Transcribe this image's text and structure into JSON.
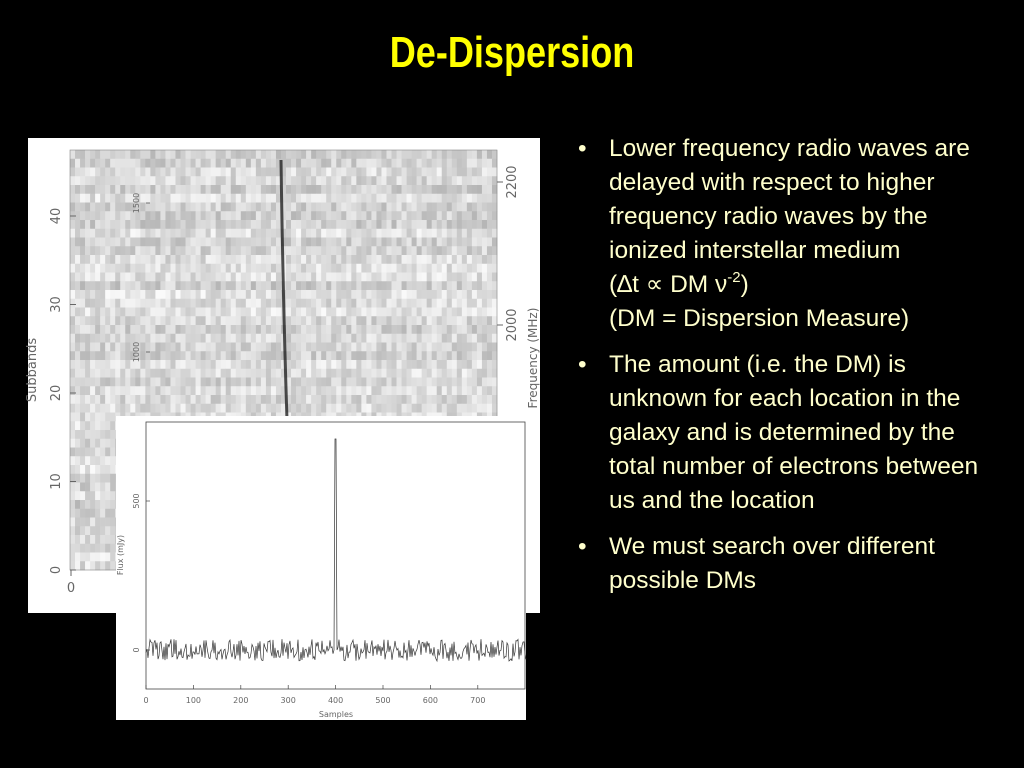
{
  "title": "De-Dispersion",
  "bullets": [
    {
      "text": "Lower frequency radio waves are delayed with respect to higher frequency radio waves by the ionized interstellar medium",
      "formula": {
        "open": "(∆t ∝ DM ν",
        "exp": "-2",
        "close": ")"
      },
      "note": "(DM = Dispersion Measure)"
    },
    {
      "text": "The amount (i.e. the DM) is unknown for each location in the galaxy and is determined by the total number of electrons between us and the location"
    },
    {
      "text": "We must search over different possible DMs"
    }
  ],
  "figure_top": {
    "y_label": "Subbands",
    "y_ticks": [
      0,
      10,
      20,
      30,
      40
    ],
    "y2_label": "Frequency (MHz)",
    "y2_ticks": [
      2000,
      2200
    ],
    "x_ticks": [
      0
    ]
  },
  "figure_bottom": {
    "x_label": "Samples",
    "x_ticks": [
      0,
      100,
      200,
      300,
      400,
      500,
      600,
      700
    ],
    "y_label": "Flux (mJy)",
    "y_ticks": [
      0,
      500,
      1000,
      1500
    ]
  }
}
